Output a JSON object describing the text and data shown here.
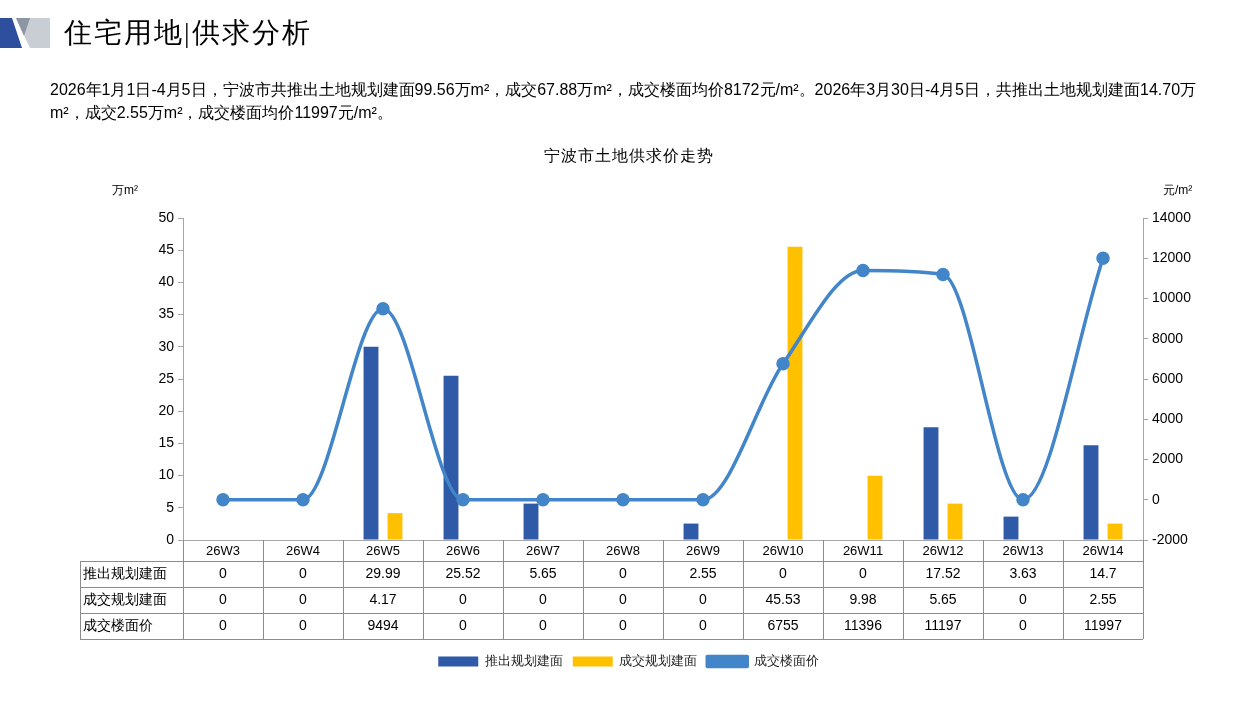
{
  "chart_data": {
    "type": "bar",
    "title": "住宅用地|供求分析",
    "subtitle": "2026年1月1日-4月5日，宁波市共推出土地规划建面99.56万m²，成交67.88万m²，成交楼面均价8172元/m²。2026年3月30日-4月5日，共推出土地规划建面14.70万m²，成交2.55万m²，成交楼面均价11997元/m²。",
    "annotations": [
      "宁波市土地供求价走势"
    ],
    "ylabel": "万m²",
    "y2label": "元/m²",
    "categories": [
      "26W3",
      "26W4",
      "26W5",
      "26W6",
      "26W7",
      "26W8",
      "26W9",
      "26W10",
      "26W11",
      "26W12",
      "26W13",
      "26W14"
    ],
    "series": [
      {
        "name": "推出规划建面",
        "color": "#2e5aa8",
        "values": [
          0,
          0,
          29.99,
          25.52,
          5.65,
          0,
          2.55,
          0,
          0,
          17.52,
          3.63,
          14.7
        ]
      },
      {
        "name": "成交规划建面",
        "color": "#ffc000",
        "values": [
          0,
          0,
          4.17,
          0,
          0,
          0,
          0,
          45.53,
          9.98,
          5.65,
          0,
          2.55
        ]
      },
      {
        "name": "成交楼面价",
        "type": "line",
        "axis": "y2",
        "color": "#4285c8",
        "values": [
          0,
          0,
          9494,
          0,
          0,
          0,
          0,
          6755,
          11396,
          11197,
          0,
          11997
        ]
      }
    ],
    "ylim": [
      0,
      50
    ],
    "yticks": [
      0,
      5,
      10,
      15,
      20,
      25,
      30,
      35,
      40,
      45,
      50
    ],
    "y2lim": [
      -2000,
      14000
    ],
    "y2ticks": [
      -2000,
      0,
      2000,
      4000,
      6000,
      8000,
      10000,
      12000,
      14000
    ],
    "grid": false,
    "legend": "bottom",
    "marker": "circle",
    "data_labels": true
  }
}
